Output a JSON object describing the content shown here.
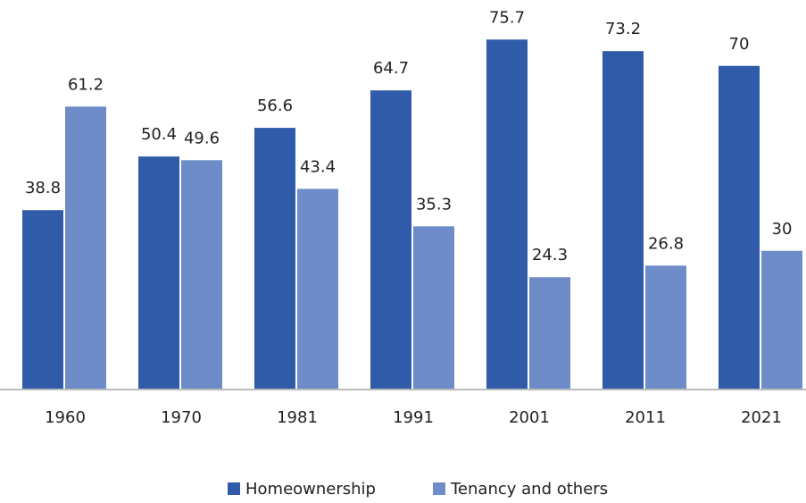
{
  "chart_data": {
    "type": "bar",
    "categories": [
      "1960",
      "1970",
      "1981",
      "1991",
      "2001",
      "2011",
      "2021"
    ],
    "series": [
      {
        "name": "Homeownership",
        "color": "#2f5ba8",
        "values": [
          38.8,
          50.4,
          56.6,
          64.7,
          75.7,
          73.2,
          70
        ]
      },
      {
        "name": "Tenancy and others",
        "color": "#6d8cc8",
        "values": [
          61.2,
          49.6,
          43.4,
          35.3,
          24.3,
          26.8,
          30
        ]
      }
    ],
    "ylim": [
      0,
      80
    ],
    "legend": "bottom"
  }
}
